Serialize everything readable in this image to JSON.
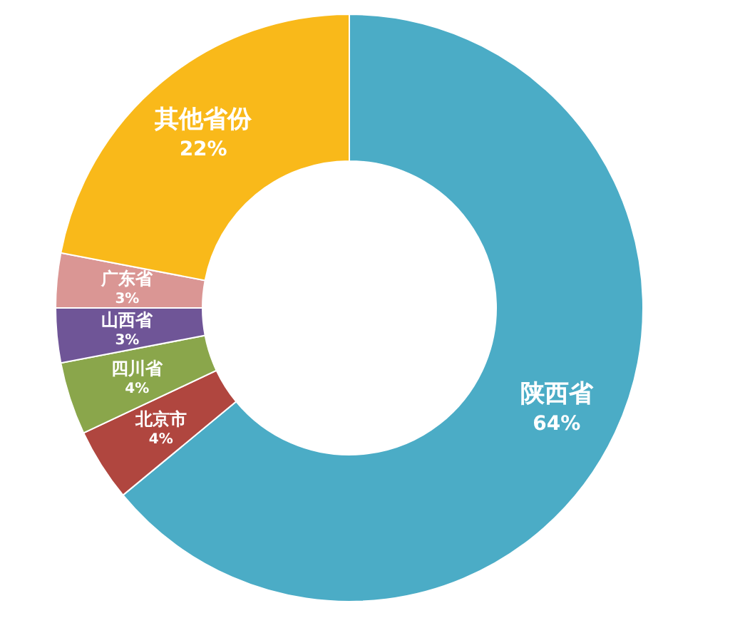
{
  "chart_data": {
    "type": "donut",
    "categories": [
      "陕西省",
      "北京市",
      "四川省",
      "山西省",
      "广东省",
      "其他省份"
    ],
    "values": [
      64,
      4,
      4,
      3,
      3,
      22
    ],
    "value_labels": [
      "64%",
      "4%",
      "4%",
      "3%",
      "3%",
      "22%"
    ],
    "colors": [
      "#4bacc6",
      "#b0463f",
      "#8aa64b",
      "#6f5597",
      "#da9694",
      "#f9b91a"
    ]
  }
}
